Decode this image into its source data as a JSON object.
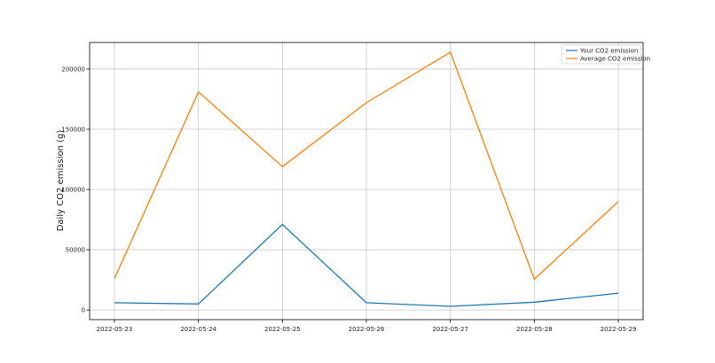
{
  "chart_data": {
    "type": "line",
    "title": "",
    "xlabel": "",
    "ylabel": "Daily CO2 emission (g)",
    "categories": [
      "2022-05-23",
      "2022-05-24",
      "2022-05-25",
      "2022-05-26",
      "2022-05-27",
      "2022-05-28",
      "2022-05-29"
    ],
    "series": [
      {
        "name": "Your CO2 emission",
        "color": "#1f77b4",
        "values": [
          6000,
          5000,
          71000,
          6000,
          3000,
          6500,
          14000
        ]
      },
      {
        "name": "Average CO2 emission",
        "color": "#ff7f0e",
        "values": [
          26000,
          181000,
          119000,
          172000,
          214000,
          25500,
          90000
        ]
      }
    ],
    "ylim": [
      -8000,
      222000
    ],
    "yticks": [
      0,
      50000,
      100000,
      150000,
      200000
    ],
    "ytick_labels": [
      "0",
      "50000",
      "100000",
      "150000",
      "200000"
    ],
    "grid": true,
    "legend_position": "top-right"
  }
}
